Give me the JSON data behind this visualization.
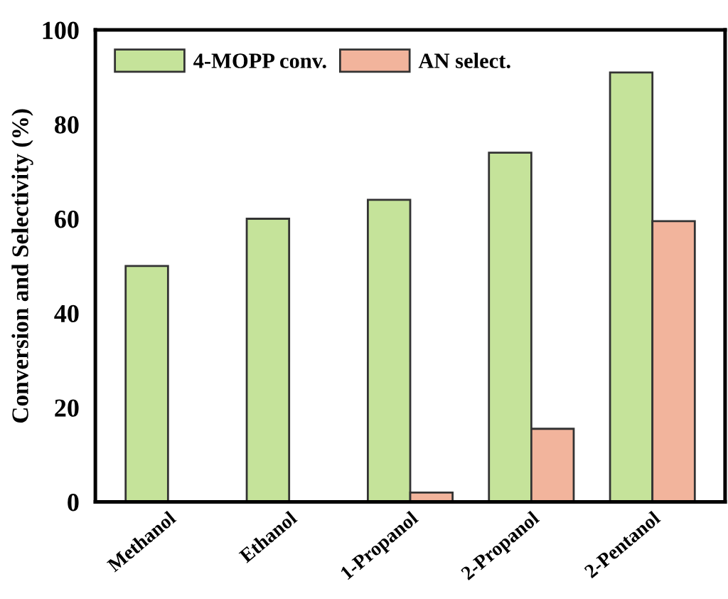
{
  "chart_data": {
    "type": "bar",
    "ylabel": "Conversion and Selectivity (%)",
    "categories": [
      "Methanol",
      "Ethanol",
      "1-Propanol",
      "2-Propanol",
      "2-Pentanol"
    ],
    "series": [
      {
        "name": "4-MOPP conv.",
        "color": "#c5e39a",
        "values": [
          50,
          60,
          64,
          74,
          91
        ]
      },
      {
        "name": "AN select.",
        "color": "#f2b49c",
        "values": [
          null,
          null,
          2,
          15.5,
          59.5
        ]
      }
    ],
    "ylim": [
      0,
      100
    ],
    "yticks": [
      0,
      20,
      40,
      60,
      80,
      100
    ],
    "grid": false,
    "legend": "top left"
  }
}
